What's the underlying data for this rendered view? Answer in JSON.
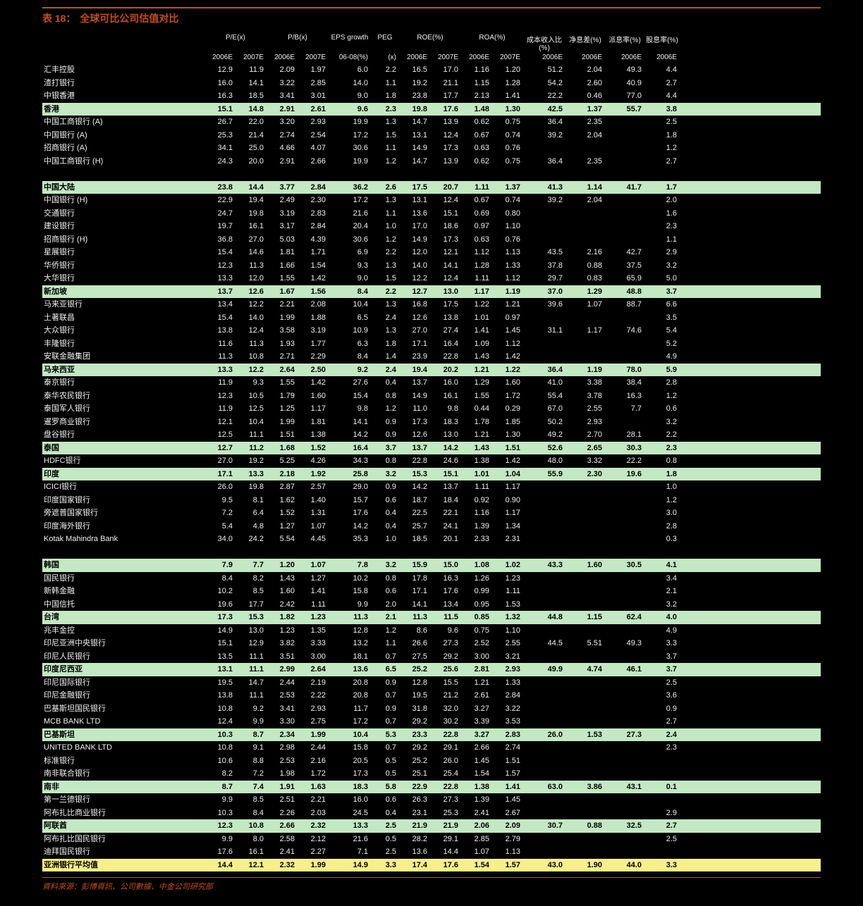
{
  "title_prefix": "表 18：",
  "title_text": "全球可比公司估值对比",
  "source_text": "資料來源：彭博資訊、公司數據、中金公司研究部",
  "headers_top": [
    "",
    "P/E(x)",
    "P/B(x)",
    "EPS growth",
    "PEG",
    "ROE(%)",
    "ROA(%)",
    "成本收入比(%)",
    "净息差(%)",
    "派息率(%)",
    "股息率(%)"
  ],
  "headers_bot": [
    "",
    "2006E",
    "2007E",
    "2006E",
    "2007E",
    "06-08(%)",
    "(x)",
    "2006E",
    "2007E",
    "2006E",
    "2007E",
    "2006E",
    "2006E",
    "2006E",
    "2006E"
  ],
  "rows": [
    {
      "style": "dark",
      "c": [
        "汇丰控股",
        "12.9",
        "11.9",
        "2.09",
        "1.97",
        "6.0",
        "2.2",
        "16.5",
        "17.0",
        "1.16",
        "1.20",
        "51.2",
        "2.04",
        "49.3",
        "4.4"
      ]
    },
    {
      "style": "dark",
      "c": [
        "渣打银行",
        "16.0",
        "14.1",
        "3.22",
        "2.85",
        "14.0",
        "1.1",
        "19.2",
        "21.1",
        "1.15",
        "1.28",
        "54.2",
        "2.60",
        "40.9",
        "2.7"
      ]
    },
    {
      "style": "dark",
      "c": [
        "中银香港",
        "16.3",
        "18.5",
        "3.41",
        "3.01",
        "9.0",
        "1.8",
        "23.8",
        "17.7",
        "2.13",
        "1.41",
        "22.2",
        "0.46",
        "77.0",
        "4.4"
      ]
    },
    {
      "style": "green bold",
      "c": [
        "香港",
        "15.1",
        "14.8",
        "2.91",
        "2.61",
        "9.6",
        "2.3",
        "19.8",
        "17.6",
        "1.48",
        "1.30",
        "42.5",
        "1.37",
        "55.7",
        "3.8"
      ]
    },
    {
      "style": "dark",
      "c": [
        "中国工商银行 (A)",
        "26.7",
        "22.0",
        "3.20",
        "2.93",
        "19.9",
        "1.3",
        "14.7",
        "13.9",
        "0.62",
        "0.75",
        "36.4",
        "2.35",
        "",
        "2.5"
      ]
    },
    {
      "style": "dark",
      "c": [
        "中国银行 (A)",
        "25.3",
        "21.4",
        "2.74",
        "2.54",
        "17.2",
        "1.5",
        "13.1",
        "12.4",
        "0.67",
        "0.74",
        "39.2",
        "2.04",
        "",
        "1.8"
      ]
    },
    {
      "style": "dark",
      "c": [
        "招商银行 (A)",
        "34.1",
        "25.0",
        "4.66",
        "4.07",
        "30.6",
        "1.1",
        "14.9",
        "17.3",
        "0.63",
        "0.76",
        "",
        "",
        "",
        "1.2"
      ]
    },
    {
      "style": "dark",
      "c": [
        "中国工商银行 (H)",
        "24.3",
        "20.0",
        "2.91",
        "2.66",
        "19.9",
        "1.2",
        "14.7",
        "13.9",
        "0.62",
        "0.75",
        "36.4",
        "2.35",
        "",
        "2.7"
      ]
    },
    {
      "style": "dark",
      "c": [
        "",
        "",
        "",
        "",
        "",
        "",
        "",
        "",
        "",
        "",
        "",
        "",
        "",
        "",
        ""
      ]
    },
    {
      "style": "green bold",
      "c": [
        "中国大陆",
        "23.8",
        "14.4",
        "3.77",
        "2.84",
        "36.2",
        "2.6",
        "17.5",
        "20.7",
        "1.11",
        "1.37",
        "41.3",
        "1.14",
        "41.7",
        "1.7"
      ]
    },
    {
      "style": "dark",
      "c": [
        "中国银行 (H)",
        "22.9",
        "19.4",
        "2.49",
        "2.30",
        "17.2",
        "1.3",
        "13.1",
        "12.4",
        "0.67",
        "0.74",
        "39.2",
        "2.04",
        "",
        "2.0"
      ]
    },
    {
      "style": "dark",
      "c": [
        "交通银行",
        "24.7",
        "19.8",
        "3.19",
        "2.83",
        "21.6",
        "1.1",
        "13.6",
        "15.1",
        "0.69",
        "0.80",
        "",
        "",
        "",
        "1.6"
      ]
    },
    {
      "style": "dark",
      "c": [
        "建设银行",
        "19.7",
        "16.1",
        "3.17",
        "2.84",
        "20.4",
        "1.0",
        "17.0",
        "18.6",
        "0.97",
        "1.10",
        "",
        "",
        "",
        "2.3"
      ]
    },
    {
      "style": "dark",
      "c": [
        "招商银行 (H)",
        "36.8",
        "27.0",
        "5.03",
        "4.39",
        "30.6",
        "1.2",
        "14.9",
        "17.3",
        "0.63",
        "0.76",
        "",
        "",
        "",
        "1.1"
      ]
    },
    {
      "style": "dark",
      "c": [
        "星展银行",
        "15.4",
        "14.6",
        "1.81",
        "1.71",
        "6.9",
        "2.2",
        "12.0",
        "12.1",
        "1.12",
        "1.13",
        "43.5",
        "2.16",
        "42.7",
        "2.9"
      ]
    },
    {
      "style": "dark",
      "c": [
        "华侨银行",
        "12.3",
        "11.3",
        "1.66",
        "1.54",
        "9.3",
        "1.3",
        "14.0",
        "14.1",
        "1.28",
        "1.33",
        "37.8",
        "0.88",
        "37.5",
        "3.2"
      ]
    },
    {
      "style": "dark",
      "c": [
        "大华银行",
        "13.3",
        "12.0",
        "1.55",
        "1.42",
        "9.0",
        "1.5",
        "12.2",
        "12.4",
        "1.11",
        "1.12",
        "29.7",
        "0.83",
        "65.9",
        "5.0"
      ]
    },
    {
      "style": "green bold",
      "c": [
        "新加坡",
        "13.7",
        "12.6",
        "1.67",
        "1.56",
        "8.4",
        "2.2",
        "12.7",
        "13.0",
        "1.17",
        "1.19",
        "37.0",
        "1.29",
        "48.8",
        "3.7"
      ]
    },
    {
      "style": "dark",
      "c": [
        "马来亚银行",
        "13.4",
        "12.2",
        "2.21",
        "2.08",
        "10.4",
        "1.3",
        "16.8",
        "17.5",
        "1.22",
        "1.21",
        "39.6",
        "1.07",
        "88.7",
        "6.6"
      ]
    },
    {
      "style": "dark",
      "c": [
        "土著联昌",
        "15.4",
        "14.0",
        "1.99",
        "1.88",
        "6.5",
        "2.4",
        "12.6",
        "13.8",
        "1.01",
        "0.97",
        "",
        "",
        "",
        "3.5"
      ]
    },
    {
      "style": "dark",
      "c": [
        "大众银行",
        "13.8",
        "12.4",
        "3.58",
        "3.19",
        "10.9",
        "1.3",
        "27.0",
        "27.4",
        "1.41",
        "1.45",
        "31.1",
        "1.17",
        "74.6",
        "5.4"
      ]
    },
    {
      "style": "dark",
      "c": [
        "丰隆银行",
        "11.6",
        "11.3",
        "1.93",
        "1.77",
        "6.3",
        "1.8",
        "17.1",
        "16.4",
        "1.09",
        "1.12",
        "",
        "",
        "",
        "5.2"
      ]
    },
    {
      "style": "dark",
      "c": [
        "安联金融集团",
        "11.3",
        "10.8",
        "2.71",
        "2.29",
        "8.4",
        "1.4",
        "23.9",
        "22.8",
        "1.43",
        "1.42",
        "",
        "",
        "",
        "4.9"
      ]
    },
    {
      "style": "green bold",
      "c": [
        "马来西亚",
        "13.3",
        "12.2",
        "2.64",
        "2.50",
        "9.2",
        "2.4",
        "19.4",
        "20.2",
        "1.21",
        "1.22",
        "36.4",
        "1.19",
        "78.0",
        "5.9"
      ]
    },
    {
      "style": "dark",
      "c": [
        "泰京银行",
        "11.9",
        "9.3",
        "1.55",
        "1.42",
        "27.6",
        "0.4",
        "13.7",
        "16.0",
        "1.29",
        "1.60",
        "41.0",
        "3.38",
        "38.4",
        "2.8"
      ]
    },
    {
      "style": "dark",
      "c": [
        "泰华农民银行",
        "12.3",
        "10.5",
        "1.79",
        "1.60",
        "15.4",
        "0.8",
        "14.9",
        "16.1",
        "1.55",
        "1.72",
        "55.4",
        "3.78",
        "16.3",
        "1.2"
      ]
    },
    {
      "style": "dark",
      "c": [
        "泰国军人银行",
        "11.9",
        "12.5",
        "1.25",
        "1.17",
        "9.8",
        "1.2",
        "11.0",
        "9.8",
        "0.44",
        "0.29",
        "67.0",
        "2.55",
        "7.7",
        "0.6"
      ]
    },
    {
      "style": "dark",
      "c": [
        "暹罗商业银行",
        "12.1",
        "10.4",
        "1.99",
        "1.81",
        "14.1",
        "0.9",
        "17.3",
        "18.3",
        "1.78",
        "1.85",
        "50.2",
        "2.93",
        "",
        "3.2"
      ]
    },
    {
      "style": "dark",
      "c": [
        "盘谷银行",
        "12.5",
        "11.1",
        "1.51",
        "1.38",
        "14.2",
        "0.9",
        "12.6",
        "13.0",
        "1.21",
        "1.30",
        "49.2",
        "2.70",
        "28.1",
        "2.2"
      ]
    },
    {
      "style": "green bold",
      "c": [
        "泰国",
        "12.7",
        "11.2",
        "1.68",
        "1.52",
        "16.4",
        "3.7",
        "13.7",
        "14.2",
        "1.43",
        "1.51",
        "52.6",
        "2.65",
        "30.3",
        "2.3"
      ]
    },
    {
      "style": "dark",
      "c": [
        "HDFC银行",
        "27.0",
        "19.2",
        "5.25",
        "4.26",
        "34.3",
        "0.8",
        "22.8",
        "24.6",
        "1.38",
        "1.42",
        "48.0",
        "3.32",
        "22.2",
        "0.8"
      ]
    },
    {
      "style": "green bold",
      "c": [
        "印度",
        "17.1",
        "13.3",
        "2.18",
        "1.92",
        "25.8",
        "3.2",
        "15.3",
        "15.1",
        "1.01",
        "1.04",
        "55.9",
        "2.30",
        "19.6",
        "1.8"
      ]
    },
    {
      "style": "dark",
      "c": [
        "ICICI银行",
        "26.0",
        "19.8",
        "2.87",
        "2.57",
        "29.0",
        "0.9",
        "14.2",
        "13.7",
        "1.11",
        "1.17",
        "",
        "",
        "",
        "1.0"
      ]
    },
    {
      "style": "dark",
      "c": [
        "印度国家银行",
        "9.5",
        "8.1",
        "1.62",
        "1.40",
        "15.7",
        "0.6",
        "18.7",
        "18.4",
        "0.92",
        "0.90",
        "",
        "",
        "",
        "1.2"
      ]
    },
    {
      "style": "dark",
      "c": [
        "旁遮普国家银行",
        "7.2",
        "6.4",
        "1.52",
        "1.31",
        "17.6",
        "0.4",
        "22.5",
        "22.1",
        "1.16",
        "1.17",
        "",
        "",
        "",
        "3.0"
      ]
    },
    {
      "style": "dark",
      "c": [
        "印度海外银行",
        "5.4",
        "4.8",
        "1.27",
        "1.07",
        "14.2",
        "0.4",
        "25.7",
        "24.1",
        "1.39",
        "1.34",
        "",
        "",
        "",
        "2.8"
      ]
    },
    {
      "style": "dark",
      "c": [
        "Kotak Mahindra Bank",
        "34.0",
        "24.2",
        "5.54",
        "4.45",
        "35.3",
        "1.0",
        "18.5",
        "20.1",
        "2.33",
        "2.31",
        "",
        "",
        "",
        "0.3"
      ]
    },
    {
      "style": "dark",
      "c": [
        "",
        "",
        "",
        "",
        "",
        "",
        "",
        "",
        "",
        "",
        "",
        "",
        "",
        "",
        ""
      ]
    },
    {
      "style": "green bold",
      "c": [
        "韩国",
        "7.9",
        "7.7",
        "1.20",
        "1.07",
        "7.8",
        "3.2",
        "15.9",
        "15.0",
        "1.08",
        "1.02",
        "43.3",
        "1.60",
        "30.5",
        "4.1"
      ]
    },
    {
      "style": "dark",
      "c": [
        "国民银行",
        "8.4",
        "8.2",
        "1.43",
        "1.27",
        "10.2",
        "0.8",
        "17.8",
        "16.3",
        "1.26",
        "1.23",
        "",
        "",
        "",
        "3.4"
      ]
    },
    {
      "style": "dark",
      "c": [
        "新韩金融",
        "10.2",
        "8.5",
        "1.60",
        "1.41",
        "15.8",
        "0.6",
        "17.1",
        "17.6",
        "0.99",
        "1.11",
        "",
        "",
        "",
        "2.1"
      ]
    },
    {
      "style": "dark",
      "c": [
        "中国信托",
        "19.6",
        "17.7",
        "2.42",
        "1.11",
        "9.9",
        "2.0",
        "14.1",
        "13.4",
        "0.95",
        "1.53",
        "",
        "",
        "",
        "3.2"
      ]
    },
    {
      "style": "green bold",
      "c": [
        "台湾",
        "17.3",
        "15.3",
        "1.82",
        "1.23",
        "11.3",
        "2.1",
        "11.3",
        "11.5",
        "0.85",
        "1.32",
        "44.8",
        "1.15",
        "62.4",
        "4.0"
      ]
    },
    {
      "style": "dark",
      "c": [
        "兆丰金控",
        "14.9",
        "13.0",
        "1.23",
        "1.35",
        "12.8",
        "1.2",
        "8.6",
        "9.6",
        "0.75",
        "1.10",
        "",
        "",
        "",
        "4.9"
      ]
    },
    {
      "style": "dark",
      "c": [
        "印尼亚洲中央银行",
        "15.1",
        "12.9",
        "3.82",
        "3.33",
        "13.2",
        "1.1",
        "26.6",
        "27.3",
        "2.52",
        "2.55",
        "44.5",
        "5.51",
        "49.3",
        "3.3"
      ]
    },
    {
      "style": "dark",
      "c": [
        "印尼人民银行",
        "13.5",
        "11.1",
        "3.51",
        "3.00",
        "18.1",
        "0.7",
        "27.5",
        "29.2",
        "3.00",
        "3.21",
        "",
        "",
        "",
        "3.7"
      ]
    },
    {
      "style": "green bold",
      "c": [
        "印度尼西亚",
        "13.1",
        "11.1",
        "2.99",
        "2.64",
        "13.6",
        "6.5",
        "25.2",
        "25.6",
        "2.81",
        "2.93",
        "49.9",
        "4.74",
        "46.1",
        "3.7"
      ]
    },
    {
      "style": "dark",
      "c": [
        "印尼国际银行",
        "19.5",
        "14.7",
        "2.44",
        "2.19",
        "20.8",
        "0.9",
        "12.8",
        "15.5",
        "1.21",
        "1.33",
        "",
        "",
        "",
        "2.5"
      ]
    },
    {
      "style": "dark",
      "c": [
        "印尼金融银行",
        "13.8",
        "11.1",
        "2.53",
        "2.22",
        "20.8",
        "0.7",
        "19.5",
        "21.2",
        "2.61",
        "2.84",
        "",
        "",
        "",
        "3.6"
      ]
    },
    {
      "style": "dark",
      "c": [
        "巴基斯坦国民银行",
        "10.8",
        "9.2",
        "3.41",
        "2.93",
        "11.7",
        "0.9",
        "31.8",
        "32.0",
        "3.27",
        "3.22",
        "",
        "",
        "",
        "0.9"
      ]
    },
    {
      "style": "dark",
      "c": [
        "MCB BANK LTD",
        "12.4",
        "9.9",
        "3.30",
        "2.75",
        "17.2",
        "0.7",
        "29.2",
        "30.2",
        "3.39",
        "3.53",
        "",
        "",
        "",
        "2.7"
      ]
    },
    {
      "style": "green bold",
      "c": [
        "巴基斯坦",
        "10.3",
        "8.7",
        "2.34",
        "1.99",
        "10.4",
        "5.3",
        "23.3",
        "22.8",
        "3.27",
        "2.83",
        "26.0",
        "1.53",
        "27.3",
        "2.4"
      ]
    },
    {
      "style": "dark",
      "c": [
        "UNITED BANK LTD",
        "10.8",
        "9.1",
        "2.98",
        "2.44",
        "15.8",
        "0.7",
        "29.2",
        "29.1",
        "2.66",
        "2.74",
        "",
        "",
        "",
        "2.3"
      ]
    },
    {
      "style": "dark",
      "c": [
        "标准银行",
        "10.6",
        "8.8",
        "2.53",
        "2.16",
        "20.5",
        "0.5",
        "25.2",
        "26.0",
        "1.45",
        "1.51",
        "",
        "",
        "",
        ""
      ]
    },
    {
      "style": "dark",
      "c": [
        "南非联合银行",
        "8.2",
        "7.2",
        "1.98",
        "1.72",
        "17.3",
        "0.5",
        "25.1",
        "25.4",
        "1.54",
        "1.57",
        "",
        "",
        "",
        ""
      ]
    },
    {
      "style": "green bold",
      "c": [
        "南非",
        "8.7",
        "7.4",
        "1.91",
        "1.63",
        "18.3",
        "5.8",
        "22.9",
        "22.8",
        "1.38",
        "1.41",
        "63.0",
        "3.86",
        "43.1",
        "0.1"
      ]
    },
    {
      "style": "dark",
      "c": [
        "第一兰德银行",
        "9.9",
        "8.5",
        "2.51",
        "2.21",
        "16.0",
        "0.6",
        "26.3",
        "27.3",
        "1.39",
        "1.45",
        "",
        "",
        "",
        ""
      ]
    },
    {
      "style": "dark",
      "c": [
        "阿布扎比商业银行",
        "10.3",
        "8.4",
        "2.26",
        "2.03",
        "24.5",
        "0.4",
        "23.1",
        "25.3",
        "2.41",
        "2.67",
        "",
        "",
        "",
        "2.9"
      ]
    },
    {
      "style": "green bold",
      "c": [
        "阿联酋",
        "12.3",
        "10.8",
        "2.66",
        "2.32",
        "13.3",
        "2.5",
        "21.9",
        "21.9",
        "2.06",
        "2.09",
        "30.7",
        "0.88",
        "32.5",
        "2.7"
      ]
    },
    {
      "style": "dark",
      "c": [
        "阿布扎比国民银行",
        "9.9",
        "8.0",
        "2.58",
        "2.12",
        "21.6",
        "0.5",
        "28.2",
        "29.1",
        "2.85",
        "2.79",
        "",
        "",
        "",
        "2.5"
      ]
    },
    {
      "style": "dark",
      "c": [
        "迪拜国民银行",
        "17.6",
        "16.1",
        "2.41",
        "2.27",
        "7.1",
        "2.5",
        "13.6",
        "14.4",
        "1.07",
        "1.13",
        "",
        "",
        "",
        ""
      ]
    },
    {
      "style": "yellow bold",
      "c": [
        "亚洲银行平均值",
        "14.4",
        "12.1",
        "2.32",
        "1.99",
        "14.9",
        "3.3",
        "17.4",
        "17.6",
        "1.54",
        "1.57",
        "43.0",
        "1.90",
        "44.0",
        "3.3"
      ]
    }
  ]
}
